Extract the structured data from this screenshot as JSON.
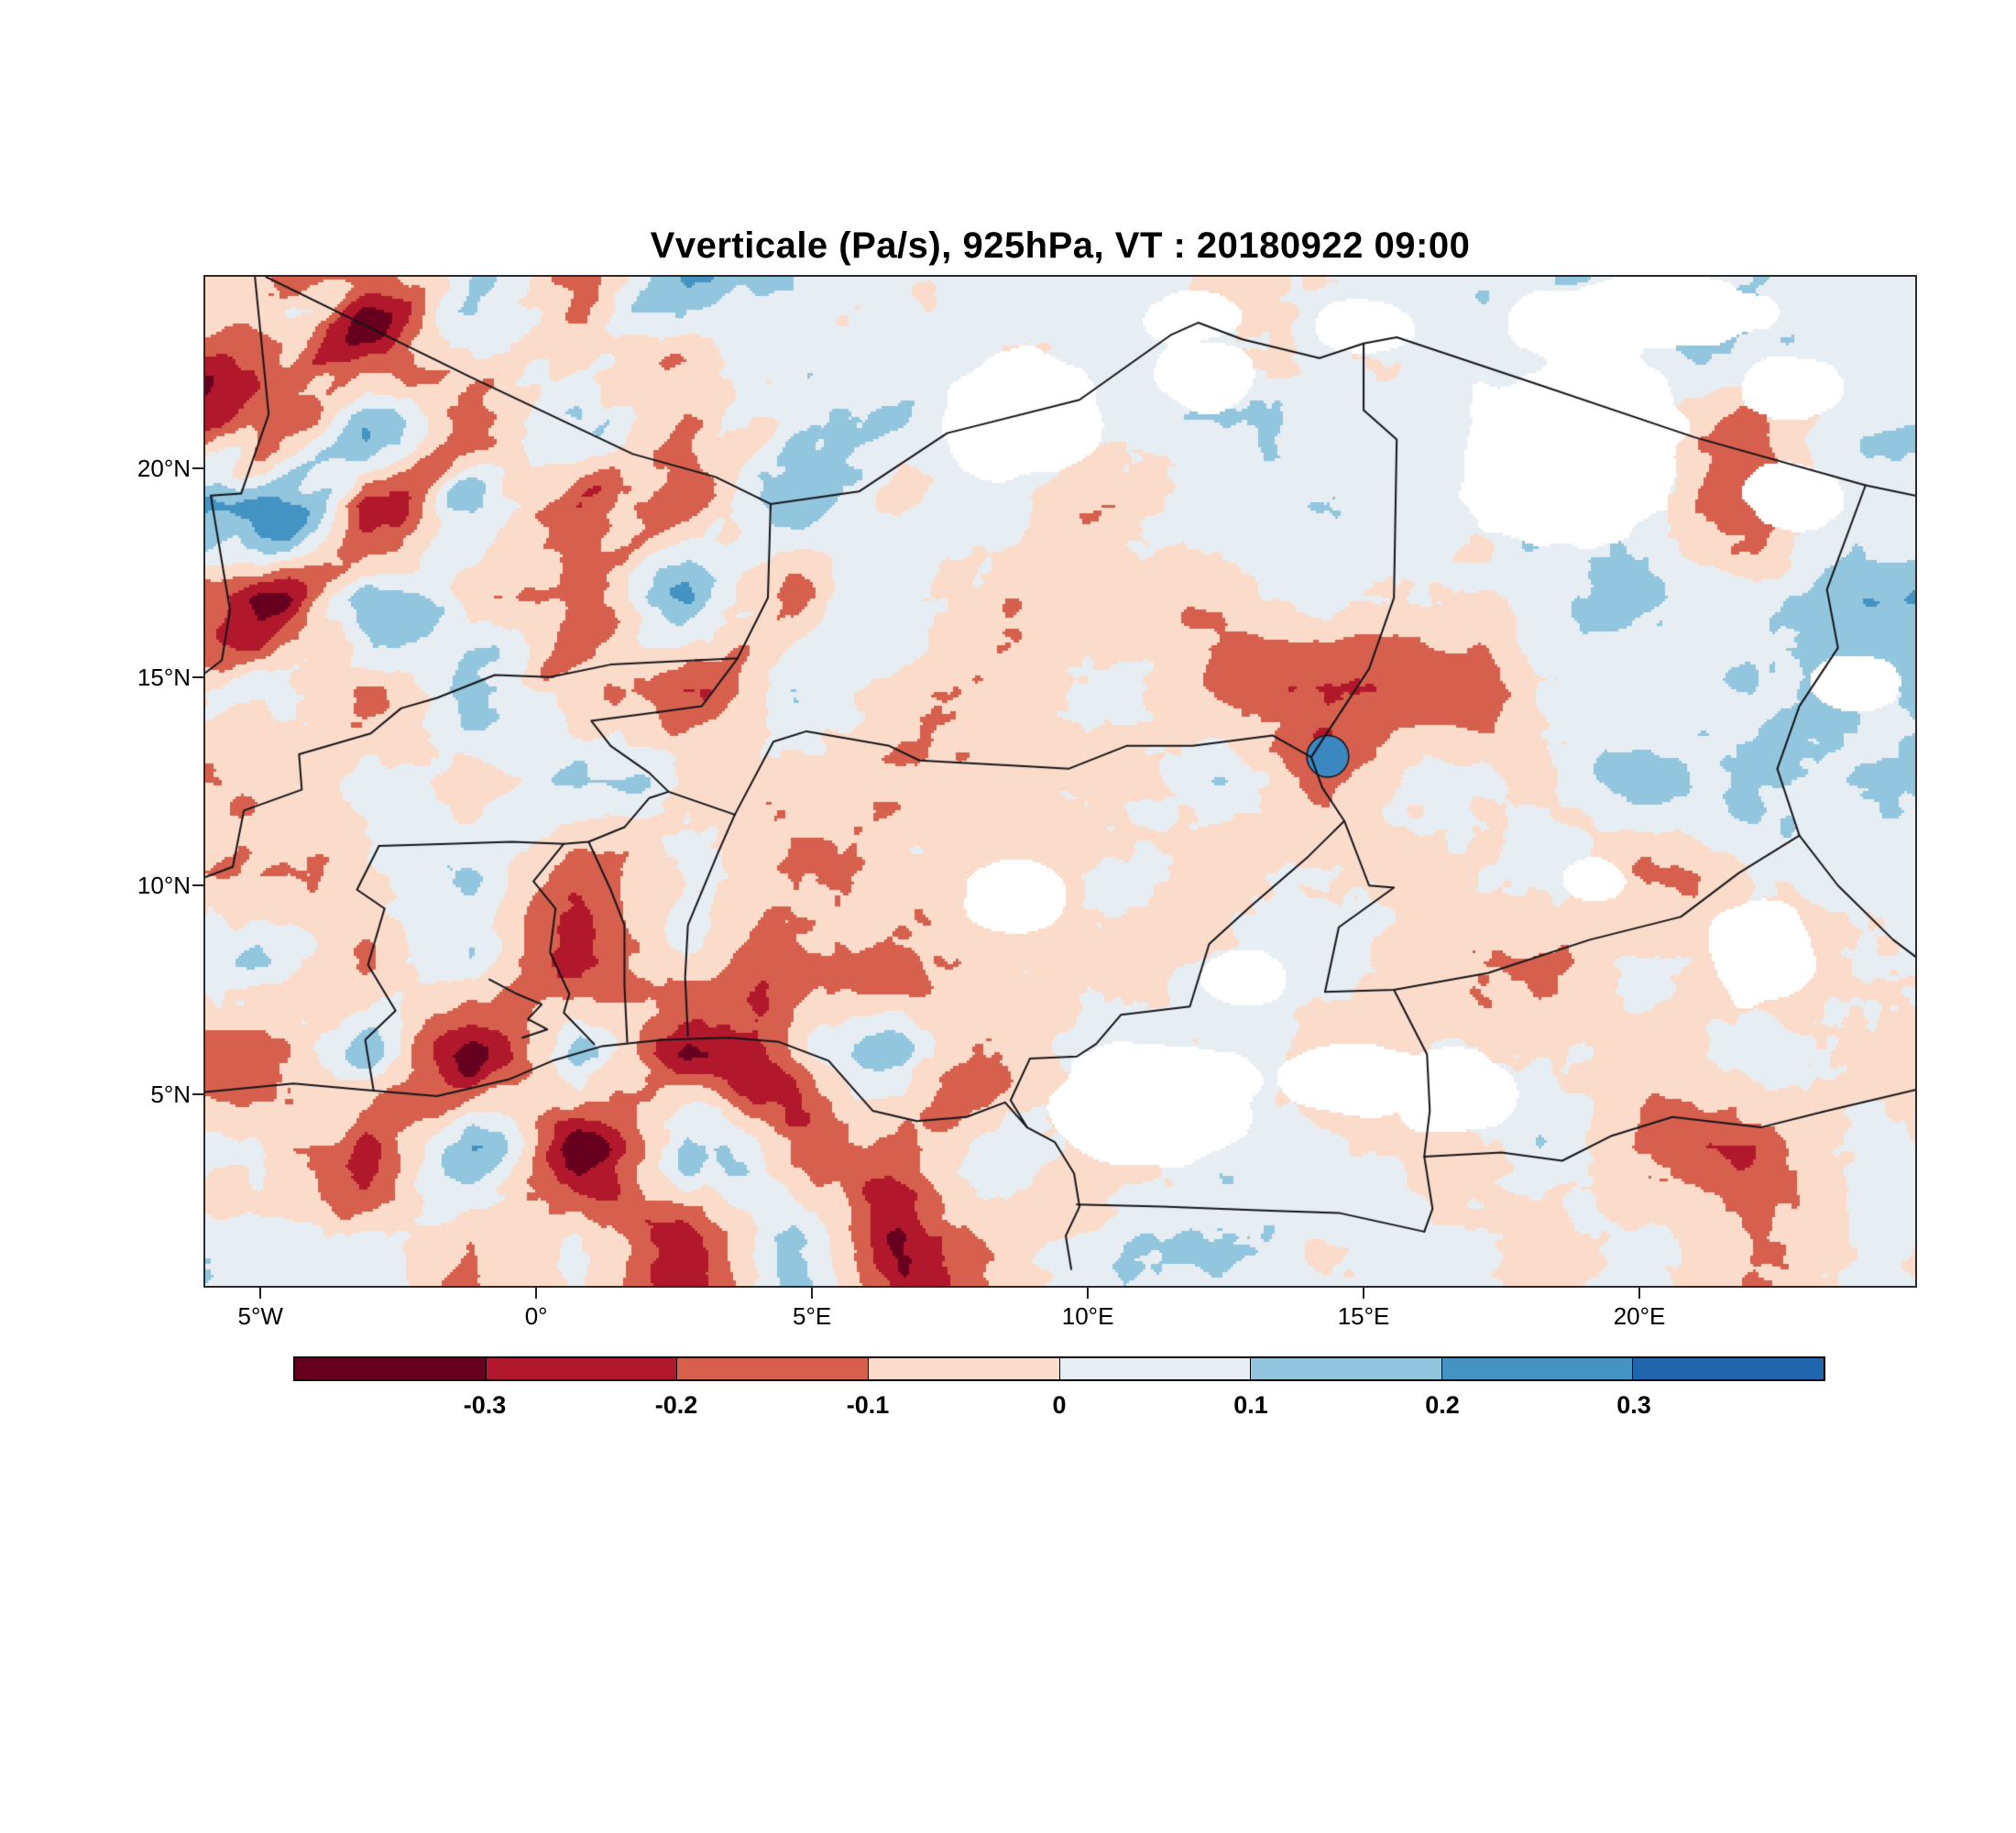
{
  "title": "Vverticale (Pa/s), 925hPa, VT : 20180922  09:00",
  "chart_data": {
    "type": "filled_contour_map",
    "title": "Vverticale (Pa/s), 925hPa, VT : 20180922  09:00",
    "variable": "Vverticale",
    "units": "Pa/s",
    "pressure_level": "925hPa",
    "valid_time": "20180922 09:00",
    "extent": {
      "lon": [
        -6,
        25
      ],
      "lat": [
        0.4,
        24.6
      ]
    },
    "x_ticks": [
      {
        "label": "5°W",
        "lon": -5
      },
      {
        "label": "0°",
        "lon": 0
      },
      {
        "label": "5°E",
        "lon": 5
      },
      {
        "label": "10°E",
        "lon": 10
      },
      {
        "label": "15°E",
        "lon": 15
      },
      {
        "label": "20°E",
        "lon": 20
      }
    ],
    "y_ticks": [
      {
        "label": "20°N",
        "lat": 20
      },
      {
        "label": "15°N",
        "lat": 15
      },
      {
        "label": "10°N",
        "lat": 10
      },
      {
        "label": "5°N",
        "lat": 5
      }
    ],
    "colorbar": {
      "tick_labels": [
        "-0.3",
        "-0.2",
        "-0.1",
        "0",
        "0.1",
        "0.2",
        "0.3"
      ],
      "levels": [
        -0.3,
        -0.2,
        -0.1,
        0,
        0.1,
        0.2,
        0.3
      ],
      "colors": [
        "#67001f",
        "#b2182b",
        "#d6604d",
        "#fbdccb",
        "#e7eef3",
        "#92c5de",
        "#4393c3",
        "#2166ac"
      ]
    },
    "field_grid": {
      "lons": [
        -5.0,
        -3.1,
        -1.2,
        0.8,
        2.7,
        4.7,
        6.6,
        8.5,
        10.5,
        12.4,
        14.3,
        16.3,
        18.2,
        20.2,
        22.1,
        24.0
      ],
      "lats": [
        23.5,
        21.3,
        19.1,
        16.9,
        14.7,
        12.5,
        10.3,
        8.1,
        5.9,
        3.7,
        1.5
      ],
      "values": [
        [
          -0.05,
          -0.22,
          0.15,
          -0.12,
          0.08,
          0.03,
          -0.04,
          0.05,
          0.08,
          -0.03,
          0.05,
          0.08,
          0.05,
          0.1,
          0.12,
          0.05
        ],
        [
          -0.25,
          0.18,
          -0.2,
          0.1,
          -0.15,
          0.05,
          0.03,
          -0.05,
          0.05,
          0.1,
          0.03,
          0.05,
          0.08,
          0.03,
          -0.1,
          0.08
        ],
        [
          0.15,
          -0.28,
          0.2,
          -0.18,
          -0.25,
          0.12,
          -0.08,
          0.04,
          -0.12,
          0.05,
          0.08,
          0.03,
          0.15,
          0.05,
          -0.18,
          0.05
        ],
        [
          -0.3,
          0.22,
          -0.15,
          -0.25,
          0.15,
          -0.2,
          0.05,
          -0.05,
          0.03,
          -0.05,
          0.05,
          -0.03,
          0.05,
          0.15,
          0.03,
          0.18
        ],
        [
          0.1,
          -0.18,
          0.12,
          -0.08,
          -0.22,
          0.08,
          -0.05,
          -0.08,
          0.04,
          -0.15,
          -0.25,
          -0.22,
          0.0,
          0.03,
          0.1,
          0.12
        ],
        [
          -0.08,
          0.06,
          -0.12,
          0.05,
          -0.06,
          -0.04,
          -0.05,
          -0.03,
          -0.05,
          0.12,
          -0.18,
          0.06,
          -0.05,
          0.15,
          0.12,
          0.08
        ],
        [
          -0.12,
          -0.05,
          0.08,
          -0.15,
          0.05,
          -0.08,
          -0.04,
          -0.06,
          0.03,
          -0.08,
          0.05,
          -0.05,
          0.03,
          -0.12,
          0.05,
          0.03
        ],
        [
          0.12,
          -0.15,
          0.1,
          -0.2,
          0.08,
          -0.06,
          -0.1,
          0.04,
          -0.05,
          0.03,
          0.05,
          -0.05,
          -0.15,
          0.05,
          -0.05,
          0.05
        ],
        [
          -0.2,
          0.15,
          -0.25,
          0.2,
          -0.3,
          -0.15,
          0.1,
          -0.08,
          0.05,
          0.03,
          -0.05,
          0.05,
          0.03,
          -0.08,
          0.1,
          -0.05
        ],
        [
          0.08,
          -0.28,
          0.15,
          -0.32,
          0.25,
          -0.28,
          -0.2,
          0.05,
          -0.06,
          0.04,
          0.05,
          -0.05,
          0.08,
          -0.15,
          -0.2,
          0.05
        ],
        [
          0.05,
          0.1,
          -0.15,
          0.08,
          -0.25,
          0.15,
          -0.3,
          -0.1,
          0.05,
          0.08,
          0.03,
          0.05,
          -0.08,
          0.05,
          -0.1,
          0.03
        ]
      ]
    },
    "no_data_patches": [
      [
        8.7,
        21.1,
        1.3,
        1.5
      ],
      [
        12.0,
        23.6,
        0.8,
        0.6
      ],
      [
        12.2,
        22.3,
        0.8,
        0.8
      ],
      [
        15.0,
        23.4,
        0.8,
        0.6
      ],
      [
        18.9,
        23.4,
        1.2,
        0.9
      ],
      [
        20.3,
        23.8,
        1.9,
        0.8
      ],
      [
        22.8,
        21.9,
        0.8,
        0.7
      ],
      [
        18.7,
        20.4,
        1.9,
        2.3
      ],
      [
        22.8,
        19.3,
        0.9,
        0.8
      ],
      [
        23.9,
        14.9,
        0.7,
        0.6
      ],
      [
        8.7,
        9.7,
        0.85,
        0.8
      ],
      [
        12.9,
        7.8,
        0.75,
        0.6
      ],
      [
        19.2,
        10.1,
        0.6,
        0.5
      ],
      [
        22.2,
        8.4,
        0.9,
        1.3
      ],
      [
        11.2,
        4.7,
        1.7,
        1.4
      ],
      [
        14.8,
        5.3,
        1.1,
        0.9
      ],
      [
        16.6,
        5.0,
        1.0,
        0.9
      ]
    ],
    "lakes": [
      [
        14.35,
        13.1,
        0.38,
        0.5
      ]
    ],
    "borders": [
      [
        [
          -6,
          5.05
        ],
        [
          -4.4,
          5.25
        ],
        [
          -3.1,
          5.1
        ],
        [
          -1.8,
          4.95
        ],
        [
          -0.5,
          5.35
        ],
        [
          0.3,
          5.8
        ],
        [
          1.2,
          6.15
        ],
        [
          2.3,
          6.3
        ],
        [
          3.5,
          6.35
        ],
        [
          4.4,
          6.25
        ],
        [
          5.3,
          5.8
        ],
        [
          6.1,
          4.6
        ],
        [
          6.9,
          4.35
        ],
        [
          7.8,
          4.45
        ],
        [
          8.5,
          4.8
        ],
        [
          8.9,
          4.2
        ],
        [
          9.4,
          3.85
        ],
        [
          9.75,
          3.1
        ],
        [
          9.85,
          2.3
        ],
        [
          9.6,
          1.6
        ],
        [
          9.7,
          0.8
        ]
      ],
      [
        [
          -5.1,
          24.6
        ],
        [
          -4.85,
          21.3
        ],
        [
          -5.35,
          19.4
        ],
        [
          -5.9,
          19.35
        ],
        [
          -5.55,
          16.6
        ],
        [
          -5.7,
          15.4
        ],
        [
          -6,
          15.1
        ]
      ],
      [
        [
          -4.9,
          24.6
        ],
        [
          -1.2,
          22.2
        ],
        [
          1.75,
          20.35
        ],
        [
          3.25,
          19.8
        ],
        [
          4.25,
          19.15
        ]
      ],
      [
        [
          4.25,
          19.15
        ],
        [
          5.85,
          19.45
        ],
        [
          7.45,
          20.85
        ],
        [
          9.85,
          21.65
        ],
        [
          11.5,
          23.2
        ],
        [
          12.0,
          23.5
        ],
        [
          12.8,
          23.1
        ],
        [
          14.2,
          22.65
        ],
        [
          15.0,
          23.0
        ],
        [
          15.6,
          23.15
        ],
        [
          18.2,
          22.0
        ],
        [
          21.0,
          20.75
        ],
        [
          24.1,
          19.6
        ],
        [
          25,
          19.35
        ]
      ],
      [
        [
          4.25,
          19.15
        ],
        [
          4.2,
          16.9
        ],
        [
          3.65,
          15.45
        ],
        [
          1.35,
          15.3
        ],
        [
          0.25,
          15.0
        ],
        [
          -0.75,
          15.05
        ],
        [
          -1.8,
          14.5
        ],
        [
          -2.45,
          14.25
        ],
        [
          -3.0,
          13.65
        ],
        [
          -4.3,
          13.15
        ],
        [
          -4.25,
          12.3
        ],
        [
          -5.3,
          11.8
        ],
        [
          -5.5,
          10.45
        ],
        [
          -6,
          10.2
        ]
      ],
      [
        [
          3.65,
          15.45
        ],
        [
          3.0,
          14.3
        ],
        [
          2.15,
          14.15
        ],
        [
          1.0,
          13.95
        ],
        [
          1.35,
          13.35
        ],
        [
          2.05,
          12.7
        ],
        [
          2.4,
          12.25
        ],
        [
          3.6,
          11.7
        ]
      ],
      [
        [
          -2.85,
          10.95
        ],
        [
          -1.6,
          11.0
        ],
        [
          -0.45,
          11.05
        ],
        [
          0.5,
          11.0
        ],
        [
          0.95,
          11.05
        ],
        [
          1.6,
          11.4
        ],
        [
          2.05,
          12.1
        ],
        [
          2.4,
          12.25
        ]
      ],
      [
        [
          -2.85,
          10.95
        ],
        [
          -3.25,
          9.9
        ],
        [
          -2.75,
          9.45
        ],
        [
          -3.05,
          8.1
        ],
        [
          -2.55,
          7.0
        ],
        [
          -3.1,
          6.3
        ],
        [
          -2.95,
          5.1
        ]
      ],
      [
        [
          0.5,
          11.0
        ],
        [
          -0.05,
          10.1
        ],
        [
          0.35,
          9.45
        ],
        [
          0.25,
          8.4
        ],
        [
          0.6,
          7.4
        ],
        [
          0.5,
          6.95
        ],
        [
          1.05,
          6.2
        ]
      ],
      [
        [
          0.95,
          11.05
        ],
        [
          1.35,
          9.9
        ],
        [
          1.6,
          9.05
        ],
        [
          1.6,
          7.6
        ],
        [
          1.65,
          6.25
        ]
      ],
      [
        [
          3.6,
          11.7
        ],
        [
          3.3,
          10.8
        ],
        [
          2.75,
          9.05
        ],
        [
          2.7,
          7.8
        ],
        [
          2.75,
          6.4
        ]
      ],
      [
        [
          3.6,
          11.7
        ],
        [
          4.3,
          13.45
        ],
        [
          4.9,
          13.7
        ],
        [
          6.4,
          13.35
        ],
        [
          6.95,
          13.0
        ],
        [
          9.0,
          12.85
        ],
        [
          9.65,
          12.8
        ],
        [
          10.7,
          13.35
        ],
        [
          11.9,
          13.35
        ],
        [
          13.35,
          13.6
        ],
        [
          14.05,
          13.08
        ]
      ],
      [
        [
          14.05,
          13.08
        ],
        [
          15.1,
          15.2
        ],
        [
          15.55,
          16.9
        ],
        [
          15.6,
          20.7
        ],
        [
          15.0,
          21.4
        ],
        [
          15.0,
          23.0
        ]
      ],
      [
        [
          14.05,
          13.08
        ],
        [
          14.25,
          12.35
        ],
        [
          14.65,
          11.55
        ],
        [
          14.0,
          10.7
        ],
        [
          12.95,
          9.5
        ],
        [
          12.2,
          8.6
        ],
        [
          11.85,
          7.1
        ],
        [
          10.6,
          6.9
        ],
        [
          10.15,
          6.2
        ],
        [
          9.8,
          5.9
        ],
        [
          8.95,
          5.85
        ],
        [
          8.6,
          4.85
        ],
        [
          8.9,
          4.2
        ]
      ],
      [
        [
          14.65,
          11.55
        ],
        [
          15.1,
          10.0
        ],
        [
          15.55,
          9.95
        ],
        [
          14.55,
          9.0
        ],
        [
          14.3,
          7.45
        ],
        [
          15.55,
          7.5
        ],
        [
          17.25,
          7.9
        ],
        [
          19.1,
          8.7
        ],
        [
          20.75,
          9.25
        ],
        [
          21.8,
          10.3
        ],
        [
          22.9,
          11.2
        ],
        [
          22.5,
          12.8
        ]
      ],
      [
        [
          22.5,
          12.8
        ],
        [
          22.9,
          14.3
        ],
        [
          23.6,
          15.7
        ],
        [
          23.4,
          17.1
        ],
        [
          24.1,
          19.6
        ]
      ],
      [
        [
          22.9,
          11.2
        ],
        [
          23.6,
          10.0
        ],
        [
          24.6,
          8.7
        ],
        [
          25,
          8.3
        ]
      ],
      [
        [
          15.55,
          7.5
        ],
        [
          16.15,
          5.95
        ],
        [
          16.2,
          4.6
        ],
        [
          16.1,
          3.5
        ],
        [
          16.25,
          2.25
        ],
        [
          16.1,
          1.7
        ]
      ],
      [
        [
          9.8,
          2.35
        ],
        [
          11.35,
          2.3
        ],
        [
          13.3,
          2.2
        ],
        [
          14.55,
          2.15
        ],
        [
          16.1,
          1.7
        ]
      ],
      [
        [
          16.1,
          3.5
        ],
        [
          17.5,
          3.6
        ],
        [
          18.6,
          3.4
        ],
        [
          19.5,
          4.0
        ],
        [
          20.6,
          4.45
        ],
        [
          22.2,
          4.2
        ],
        [
          23.4,
          4.6
        ],
        [
          25,
          5.1
        ]
      ],
      [
        [
          -0.85,
          7.75
        ],
        [
          -0.35,
          7.4
        ],
        [
          0.1,
          7.15
        ],
        [
          -0.15,
          6.8
        ],
        [
          0.2,
          6.55
        ],
        [
          -0.25,
          6.35
        ]
      ]
    ]
  }
}
